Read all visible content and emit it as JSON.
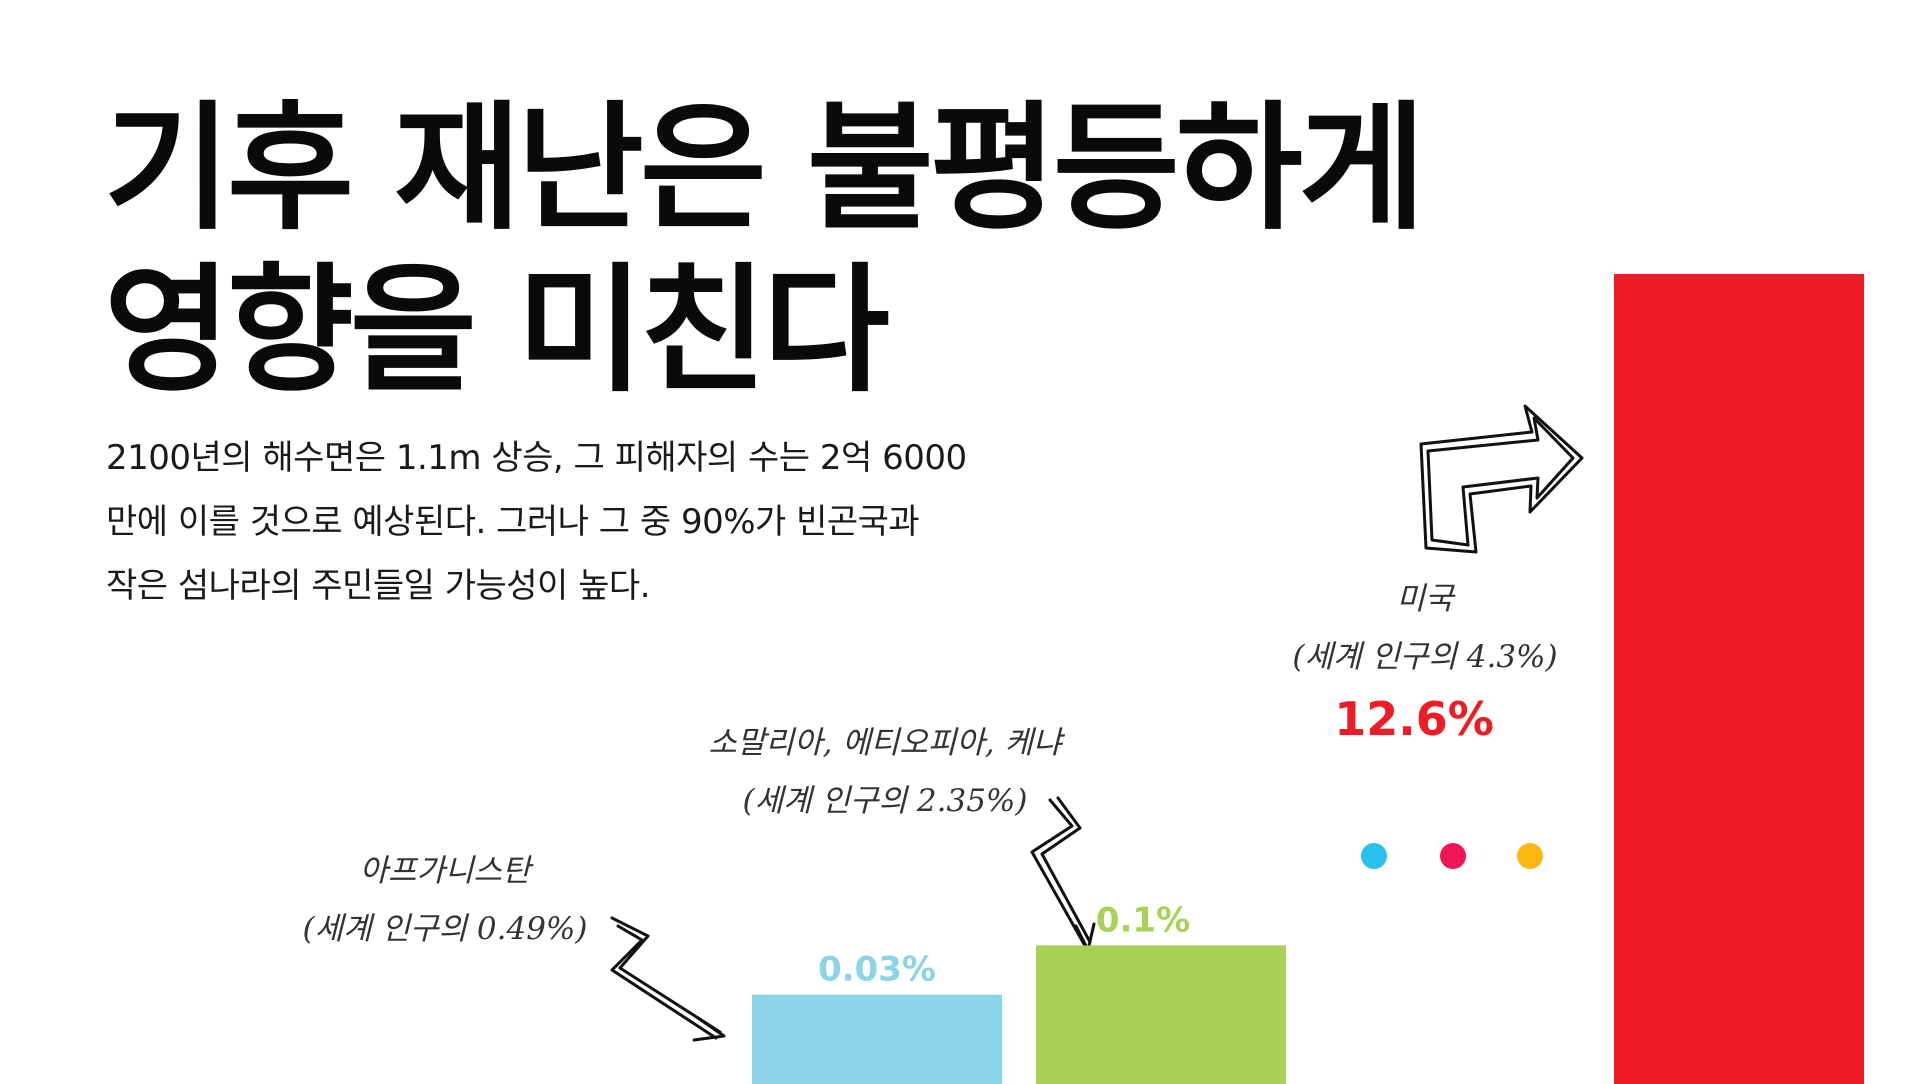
{
  "title": {
    "line1": "기후 재난은 불평등하게",
    "line2": "영향을 미친다"
  },
  "description": {
    "line1": "2100년의 해수면은 1.1m 상승, 그 피해자의 수는 2억 6000",
    "line2": "만에 이를 것으로 예상된다. 그러나 그 중 90%가 빈곤국과",
    "line3": "작은 섬나라의 주민들일 가능성이 높다."
  },
  "annotations": {
    "afghanistan": {
      "name": "아프가니스탄",
      "population": "(세계 인구의 0.49%)"
    },
    "africa": {
      "name": "소말리아, 에티오피아, 케냐",
      "population": "(세계 인구의 2.35%)"
    },
    "usa": {
      "name": "미국",
      "population": "(세계 인구의 4.3%)"
    }
  },
  "colors": {
    "bar_afghanistan": "#8bd3e6",
    "bar_africa": "#a8d156",
    "bar_usa": "#ee1c25",
    "dot_blue": "#29c0ef",
    "dot_red": "#ef1556",
    "dot_yellow": "#fbb612"
  },
  "icons": [
    "curved-arrow-icon",
    "zigzag-arrow-icon",
    "three-dots-icon"
  ],
  "chart_data": {
    "type": "bar",
    "categories": [
      "아프가니스탄",
      "소말리아, 에티오피아, 케냐",
      "미국"
    ],
    "values": [
      0.03,
      0.1,
      12.6
    ],
    "value_labels": [
      "0.03%",
      "0.1%",
      "12.6%"
    ],
    "title": "",
    "xlabel": "",
    "ylabel": "",
    "grid": false,
    "legend": "none"
  }
}
